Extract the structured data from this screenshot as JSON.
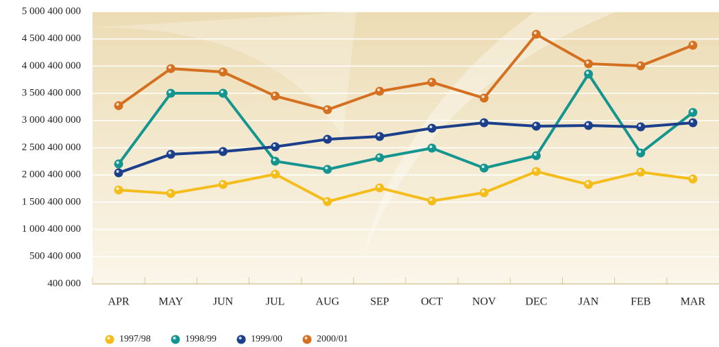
{
  "chart_data": {
    "type": "line",
    "categories": [
      "APR",
      "MAY",
      "JUN",
      "JUL",
      "AUG",
      "SEP",
      "OCT",
      "NOV",
      "DEC",
      "JAN",
      "FEB",
      "MAR"
    ],
    "ylim": [
      400000,
      5000400000
    ],
    "yticks": [
      {
        "value": 400000,
        "label": "400 000"
      },
      {
        "value": 500400000,
        "label": "500 400 000"
      },
      {
        "value": 1000400000,
        "label": "1 000 400 000"
      },
      {
        "value": 1500400000,
        "label": "1 500 400 000"
      },
      {
        "value": 2000400000,
        "label": "2 000 400 000"
      },
      {
        "value": 2500400000,
        "label": "2 500 400 000"
      },
      {
        "value": 3000400000,
        "label": "3 000 400 000"
      },
      {
        "value": 3500400000,
        "label": "3 500 400 000"
      },
      {
        "value": 4000400000,
        "label": "4 000 400 000"
      },
      {
        "value": 4500400000,
        "label": "4 500 400 000"
      },
      {
        "value": 5000400000,
        "label": "5 000 400 000"
      }
    ],
    "grid": true,
    "legend": "bottom-left",
    "series": [
      {
        "name": "1997/98",
        "color": "#f5bd1c",
        "values": [
          1725000000,
          1662000000,
          1826000000,
          2015000000,
          1511000000,
          1763000000,
          1524000000,
          1675000000,
          2065000000,
          1826000000,
          2053000000,
          1927000000
        ]
      },
      {
        "name": "1998/99",
        "color": "#14958f",
        "values": [
          2204000000,
          3501000000,
          3501000000,
          2254000000,
          2103000000,
          2317000000,
          2494000000,
          2128000000,
          2355000000,
          3854000000,
          2405000000,
          3149000000
        ]
      },
      {
        "name": "1999/00",
        "color": "#1c3f8c",
        "values": [
          2040000000,
          2380000000,
          2431000000,
          2519000000,
          2657000000,
          2708000000,
          2859000000,
          2960000000,
          2897000000,
          2909000000,
          2884000000,
          2960000000
        ]
      },
      {
        "name": "2000/01",
        "color": "#d4701f",
        "values": [
          3274000000,
          3954000000,
          3892000000,
          3451000000,
          3199000000,
          3539000000,
          3703000000,
          3413000000,
          4584000000,
          4043000000,
          4005000000,
          4383000000
        ]
      }
    ]
  }
}
